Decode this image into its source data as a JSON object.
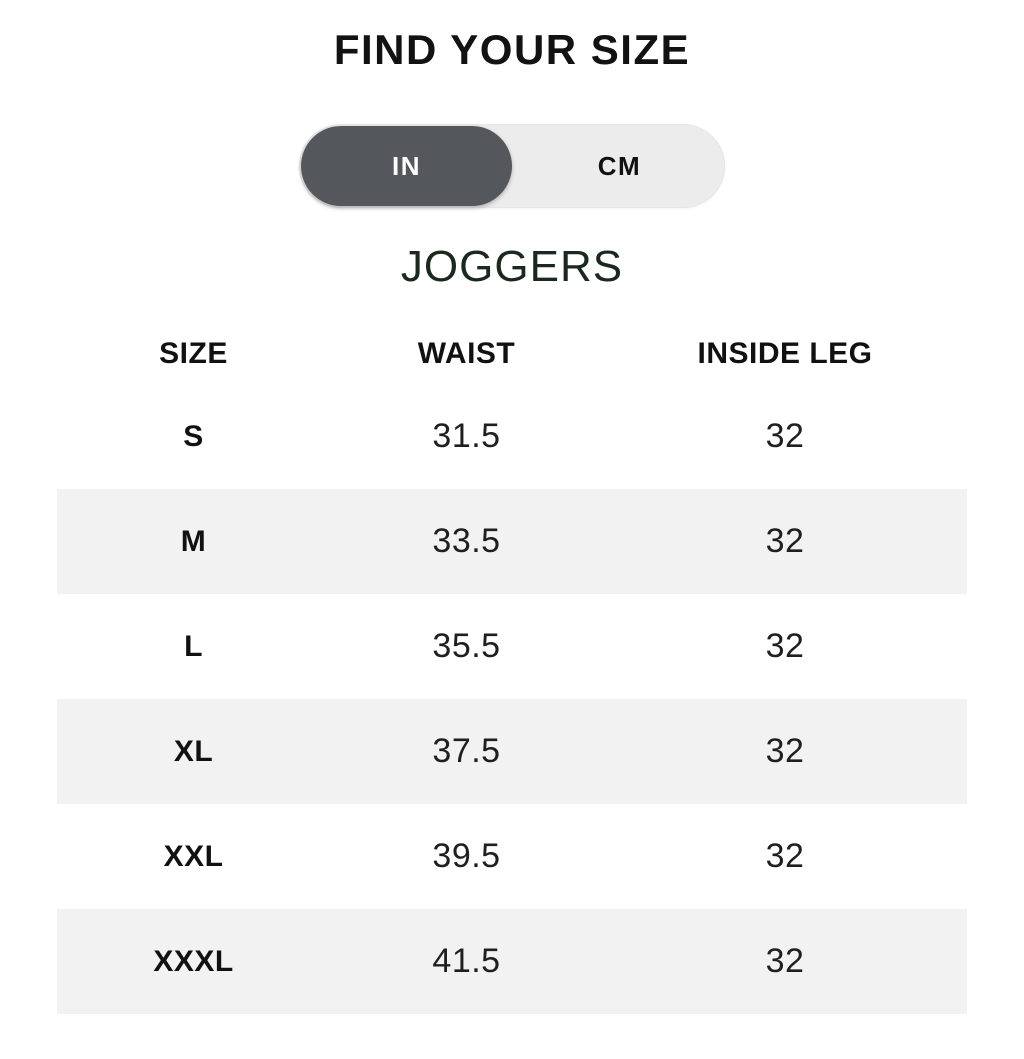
{
  "header": {
    "title": "FIND YOUR SIZE"
  },
  "unit_toggle": {
    "selected": "IN",
    "options": [
      {
        "label": "IN",
        "selected": true
      },
      {
        "label": "CM",
        "selected": false
      }
    ]
  },
  "product": {
    "title": "JOGGERS"
  },
  "size_table": {
    "columns": [
      "SIZE",
      "WAIST",
      "INSIDE LEG"
    ],
    "unit": "IN",
    "rows": [
      {
        "size": "S",
        "waist": "31.5",
        "inside_leg": "32"
      },
      {
        "size": "M",
        "waist": "33.5",
        "inside_leg": "32"
      },
      {
        "size": "L",
        "waist": "35.5",
        "inside_leg": "32"
      },
      {
        "size": "XL",
        "waist": "37.5",
        "inside_leg": "32"
      },
      {
        "size": "XXL",
        "waist": "39.5",
        "inside_leg": "32"
      },
      {
        "size": "XXXL",
        "waist": "41.5",
        "inside_leg": "32"
      }
    ]
  },
  "colors": {
    "toggle_selected_bg": "#54575c",
    "toggle_track_bg": "#ececec",
    "row_stripe_bg": "#f2f2f2",
    "product_title_color": "#1a281e",
    "text_color": "#121212",
    "background": "#ffffff"
  }
}
